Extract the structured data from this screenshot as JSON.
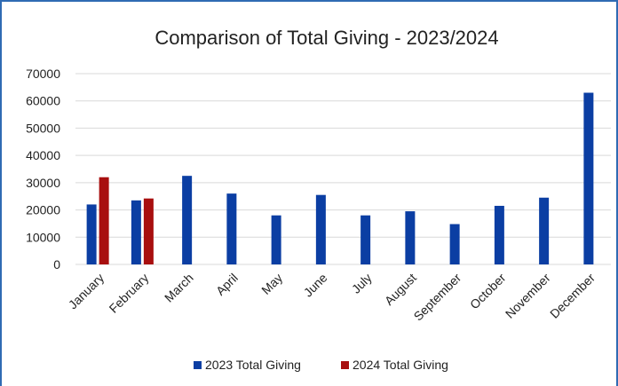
{
  "chart_data": {
    "type": "bar",
    "title": "Comparison of Total Giving - 2023/2024",
    "xlabel": "",
    "ylabel": "",
    "ylim": [
      0,
      70000
    ],
    "yticks": [
      "0",
      "10000",
      "20000",
      "30000",
      "40000",
      "50000",
      "60000",
      "70000"
    ],
    "grid": true,
    "legend_position": "bottom",
    "categories": [
      "January",
      "February",
      "March",
      "April",
      "May",
      "June",
      "July",
      "August",
      "September",
      "October",
      "November",
      "December"
    ],
    "series": [
      {
        "name": "2023 Total Giving",
        "color": "#0b3ea3",
        "values": [
          22000,
          23500,
          32500,
          26000,
          18000,
          25500,
          18000,
          19500,
          14800,
          21500,
          24500,
          63000
        ]
      },
      {
        "name": "2024 Total Giving",
        "color": "#a80f0f",
        "values": [
          32000,
          24200,
          null,
          null,
          null,
          null,
          null,
          null,
          null,
          null,
          null,
          null
        ]
      }
    ]
  }
}
